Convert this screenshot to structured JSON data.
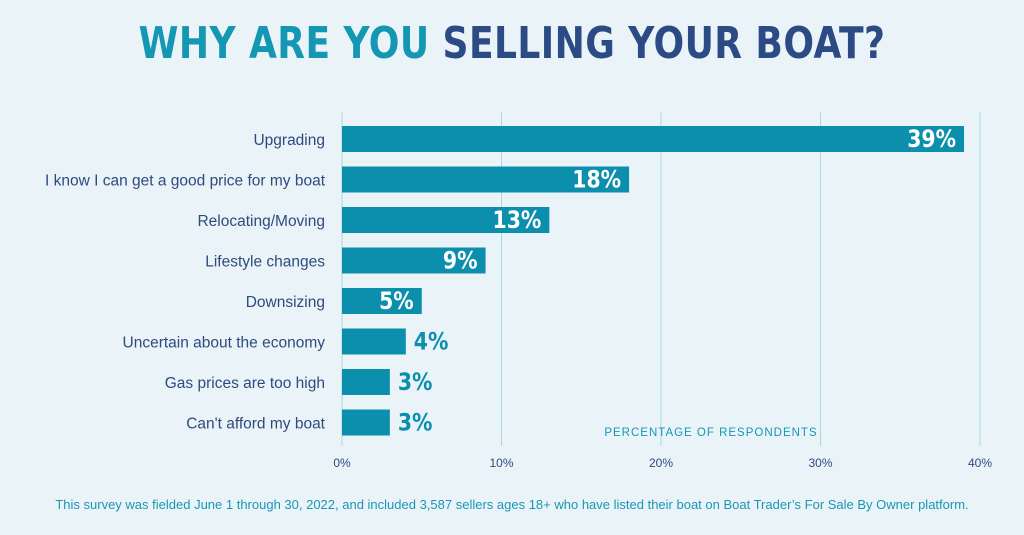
{
  "title": {
    "part1": "WHY ARE YOU",
    "part2": "SELLING YOUR BOAT?"
  },
  "colors": {
    "bar": "#0b8fad",
    "label": "#2e4b7e",
    "grid": "#a8d8dc",
    "accent": "#1497b3",
    "title_dark": "#2c4a84",
    "bg": "#eaf3f8"
  },
  "chart_data": {
    "type": "bar",
    "orientation": "horizontal",
    "title": "WHY ARE YOU SELLING YOUR BOAT?",
    "xlabel": "PERCENTAGE OF RESPONDENTS",
    "ylabel": "",
    "xlim": [
      0,
      40
    ],
    "grid": true,
    "categories": [
      "Upgrading",
      "I know I can get a good price for my boat",
      "Relocating/Moving",
      "Lifestyle changes",
      "Downsizing",
      "Uncertain about the economy",
      "Gas prices are too high",
      "Can't afford my boat"
    ],
    "values": [
      39,
      18,
      13,
      9,
      5,
      4,
      3,
      3
    ],
    "value_labels": [
      "39%",
      "18%",
      "13%",
      "9%",
      "5%",
      "4%",
      "3%",
      "3%"
    ],
    "ticks": [
      0,
      10,
      20,
      30,
      40
    ],
    "tick_labels": [
      "0%",
      "10%",
      "20%",
      "30%",
      "40%"
    ]
  },
  "footnote": "This survey was fielded June 1 through 30, 2022, and included 3,587 sellers ages 18+ who have listed their boat on Boat Trader’s For Sale By Owner platform."
}
